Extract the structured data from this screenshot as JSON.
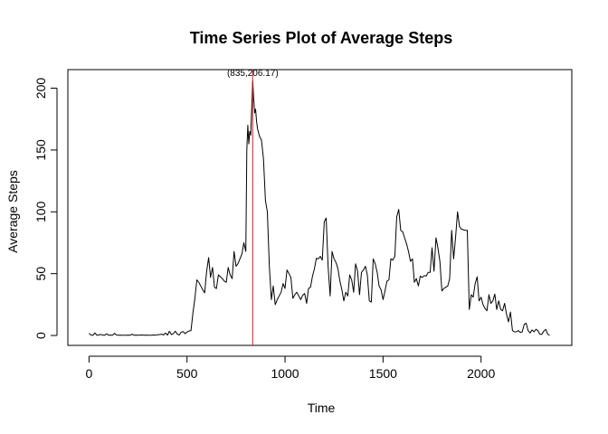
{
  "chart_data": {
    "type": "line",
    "title": "Time Series Plot of Average Steps",
    "xlabel": "Time",
    "ylabel": "Average Steps",
    "xlim": [
      -108,
      2463
    ],
    "ylim": [
      -8,
      215
    ],
    "xticks": [
      0,
      500,
      1000,
      1500,
      2000
    ],
    "yticks": [
      0,
      50,
      100,
      150,
      200
    ],
    "grid": false,
    "legend": "none",
    "colors": {
      "series": "#000000",
      "marker_line": "#e41a1c"
    },
    "vline_x": 835,
    "annotation": {
      "text": "(835,206.17)",
      "x": 835,
      "y": 206.17
    },
    "series": [
      {
        "x": [
          0,
          10,
          20,
          30,
          40,
          50,
          60,
          70,
          80,
          90,
          100,
          110,
          120,
          130,
          140,
          150,
          160,
          170,
          180,
          190,
          200,
          210,
          220,
          230,
          240,
          250,
          260,
          270,
          280,
          290,
          300,
          310,
          320,
          330,
          340,
          350,
          360,
          370,
          380,
          390,
          400,
          410,
          420,
          430,
          440,
          450,
          460,
          470,
          480,
          490,
          500,
          510,
          520,
          530,
          540,
          550,
          560,
          570,
          580,
          590,
          600,
          610,
          620,
          630,
          640,
          650,
          660,
          670,
          680,
          690,
          700,
          710,
          720,
          730,
          740,
          750,
          760,
          770,
          780,
          790,
          800,
          805,
          810,
          815,
          820,
          825,
          830,
          835,
          840,
          845,
          850,
          855,
          860,
          870,
          880,
          890,
          900,
          910,
          920,
          930,
          940,
          950,
          960,
          970,
          980,
          990,
          1000,
          1010,
          1020,
          1030,
          1040,
          1050,
          1060,
          1070,
          1080,
          1090,
          1100,
          1110,
          1120,
          1130,
          1140,
          1150,
          1160,
          1170,
          1180,
          1190,
          1200,
          1210,
          1220,
          1230,
          1240,
          1250,
          1260,
          1270,
          1280,
          1290,
          1300,
          1310,
          1320,
          1330,
          1340,
          1350,
          1360,
          1370,
          1380,
          1390,
          1400,
          1410,
          1420,
          1430,
          1440,
          1450,
          1460,
          1470,
          1480,
          1490,
          1500,
          1510,
          1520,
          1530,
          1540,
          1550,
          1560,
          1570,
          1580,
          1590,
          1600,
          1610,
          1620,
          1630,
          1640,
          1650,
          1660,
          1670,
          1680,
          1690,
          1700,
          1710,
          1720,
          1730,
          1740,
          1750,
          1760,
          1770,
          1780,
          1790,
          1800,
          1810,
          1820,
          1830,
          1840,
          1850,
          1860,
          1870,
          1880,
          1890,
          1900,
          1910,
          1920,
          1930,
          1940,
          1950,
          1960,
          1970,
          1980,
          1990,
          2000,
          2010,
          2020,
          2030,
          2040,
          2050,
          2060,
          2070,
          2080,
          2090,
          2100,
          2110,
          2120,
          2130,
          2140,
          2150,
          2160,
          2170,
          2180,
          2190,
          2200,
          2210,
          2220,
          2230,
          2240,
          2250,
          2260,
          2270,
          2280,
          2290,
          2300,
          2310,
          2320,
          2330,
          2340,
          2350
        ],
        "values": [
          1.7,
          0.3,
          0.1,
          2.1,
          0.2,
          0.4,
          0.9,
          0.2,
          0.2,
          1.4,
          0.2,
          0.3,
          0.2,
          1.8,
          0.4,
          0.2,
          0.3,
          0.1,
          0.2,
          0.2,
          0.3,
          0.2,
          1.1,
          0.2,
          0.3,
          0.2,
          0.3,
          0.4,
          0.2,
          0.3,
          0.2,
          0.2,
          0.2,
          0.4,
          0.2,
          0.6,
          0.8,
          1.1,
          0.4,
          2.0,
          0.3,
          3.4,
          0.8,
          1.5,
          3.5,
          1.2,
          0.4,
          2.6,
          3.2,
          1.5,
          2.8,
          3.6,
          4.0,
          18.0,
          30.0,
          45.0,
          43.0,
          40.0,
          37.0,
          34.5,
          52.0,
          63.0,
          47.0,
          55.0,
          39.0,
          38.0,
          49.0,
          47.5,
          46.0,
          44.0,
          43.0,
          55.0,
          49.0,
          46.0,
          68.0,
          56.0,
          58.0,
          62.0,
          66.0,
          75.0,
          68.0,
          150.0,
          170.0,
          155.0,
          165.0,
          162.0,
          184.0,
          206.17,
          192.0,
          180.0,
          183.0,
          173.0,
          167.0,
          161.0,
          158.0,
          143.0,
          109.0,
          100.0,
          56.0,
          29.0,
          40.0,
          25.0,
          29.0,
          32.0,
          35.0,
          42.0,
          38.0,
          53.0,
          50.0,
          47.0,
          30.0,
          33.0,
          35.0,
          32.0,
          29.0,
          32.5,
          34.0,
          26.0,
          38.0,
          39.0,
          48.0,
          54.0,
          62.5,
          62.0,
          64.0,
          61.0,
          92.0,
          95.0,
          55.0,
          32.0,
          68.0,
          62.0,
          59.0,
          54.0,
          44.0,
          37.0,
          28.0,
          35.0,
          32.0,
          49.0,
          45.0,
          35.0,
          58.0,
          52.0,
          33.0,
          51.0,
          53.0,
          56.0,
          49.0,
          28.0,
          27.0,
          62.0,
          58.0,
          51.0,
          40.0,
          37.0,
          29.0,
          36.0,
          44.0,
          45.0,
          62.0,
          61.0,
          64.0,
          96.0,
          102.0,
          85.0,
          84.0,
          79.0,
          74.0,
          68.0,
          60.0,
          62.0,
          43.0,
          46.0,
          40.0,
          48.0,
          47.0,
          48.5,
          48.0,
          51.0,
          51.0,
          71.0,
          52.0,
          79.0,
          71.0,
          60.0,
          36.0,
          38.0,
          39.0,
          40.0,
          46.0,
          85.0,
          62.0,
          79.0,
          100.0,
          88.0,
          86.0,
          85.5,
          85.0,
          85.0,
          21.0,
          33.0,
          31.0,
          42.0,
          47.5,
          28.0,
          31.0,
          25.0,
          22.0,
          20.0,
          33.0,
          26.0,
          28.0,
          33.5,
          21.0,
          28.0,
          21.0,
          20.0,
          26.0,
          17.0,
          11.0,
          19.0,
          4.0,
          3.0,
          3.0,
          4.0,
          2.5,
          3.0,
          9.0,
          10.0,
          4.0,
          2.0,
          4.5,
          3.0,
          5.0,
          4.0,
          1.0,
          1.0,
          3.5,
          5.0,
          1.0,
          0.2
        ]
      }
    ]
  }
}
